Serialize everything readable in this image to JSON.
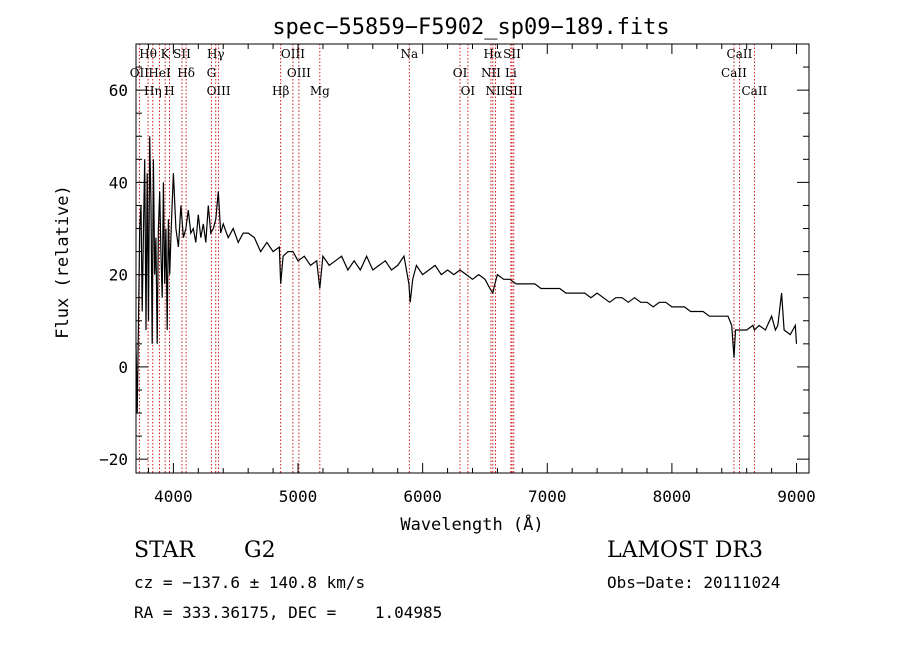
{
  "chart_data": {
    "type": "line",
    "title": "spec−55859−F5902_sp09−189.fits",
    "xlabel": "Wavelength (Å)",
    "ylabel": "Flux (relative)",
    "xlim": [
      3700,
      9100
    ],
    "ylim": [
      -23,
      70
    ],
    "xticks": [
      4000,
      5000,
      6000,
      7000,
      8000,
      9000
    ],
    "yticks": [
      -20,
      0,
      20,
      40,
      60
    ],
    "line_color": "#000000",
    "marker_color": "#cc0000",
    "series": [
      {
        "name": "spectrum",
        "x": [
          3700,
          3710,
          3720,
          3730,
          3740,
          3750,
          3760,
          3770,
          3780,
          3790,
          3800,
          3810,
          3820,
          3830,
          3840,
          3850,
          3860,
          3870,
          3880,
          3890,
          3900,
          3910,
          3920,
          3930,
          3940,
          3950,
          3960,
          3970,
          3980,
          3990,
          4000,
          4020,
          4040,
          4060,
          4080,
          4100,
          4120,
          4140,
          4160,
          4180,
          4200,
          4220,
          4240,
          4260,
          4280,
          4300,
          4320,
          4340,
          4360,
          4380,
          4400,
          4440,
          4480,
          4520,
          4560,
          4600,
          4650,
          4700,
          4750,
          4800,
          4850,
          4861,
          4880,
          4920,
          4960,
          5000,
          5050,
          5100,
          5150,
          5175,
          5200,
          5250,
          5300,
          5350,
          5400,
          5450,
          5500,
          5550,
          5600,
          5650,
          5700,
          5750,
          5800,
          5850,
          5890,
          5900,
          5920,
          5950,
          6000,
          6050,
          6100,
          6150,
          6200,
          6250,
          6300,
          6350,
          6400,
          6450,
          6500,
          6540,
          6563,
          6580,
          6600,
          6650,
          6700,
          6750,
          6800,
          6850,
          6900,
          6950,
          7000,
          7050,
          7100,
          7150,
          7200,
          7250,
          7300,
          7350,
          7400,
          7450,
          7500,
          7550,
          7600,
          7650,
          7700,
          7750,
          7800,
          7850,
          7900,
          7950,
          8000,
          8050,
          8100,
          8150,
          8200,
          8250,
          8300,
          8350,
          8400,
          8450,
          8480,
          8498,
          8510,
          8542,
          8560,
          8600,
          8650,
          8662,
          8700,
          8750,
          8800,
          8830,
          8850,
          8880,
          8900,
          8950,
          8990,
          9000
        ],
        "values": [
          5,
          -10,
          10,
          30,
          35,
          12,
          30,
          45,
          8,
          42,
          10,
          50,
          35,
          5,
          45,
          20,
          28,
          5,
          30,
          38,
          25,
          15,
          40,
          18,
          30,
          8,
          32,
          20,
          28,
          35,
          42,
          30,
          26,
          35,
          28,
          30,
          34,
          29,
          30,
          27,
          33,
          28,
          31,
          27,
          35,
          29,
          30,
          32,
          38,
          29,
          31,
          28,
          30,
          27,
          29,
          29,
          28,
          25,
          27,
          25,
          26,
          18,
          24,
          25,
          25,
          23,
          24,
          22,
          23,
          17,
          24,
          22,
          23,
          24,
          21,
          23,
          21,
          24,
          21,
          22,
          23,
          21,
          22,
          24,
          18,
          14,
          19,
          22,
          20,
          21,
          22,
          20,
          21,
          20,
          21,
          20,
          19,
          20,
          19,
          17,
          16,
          18,
          20,
          19,
          19,
          18,
          18,
          18,
          18,
          17,
          17,
          17,
          17,
          16,
          16,
          16,
          16,
          15,
          16,
          15,
          14,
          15,
          15,
          14,
          15,
          14,
          14,
          13,
          14,
          14,
          13,
          13,
          13,
          12,
          12,
          12,
          11,
          11,
          11,
          11,
          9,
          2,
          8,
          8,
          8,
          8,
          9,
          8,
          9,
          8,
          11,
          8,
          9,
          16,
          8,
          7,
          9,
          5
        ]
      }
    ],
    "line_markers": [
      {
        "label": "Hθ",
        "wavelength": 3797
      },
      {
        "label": "OII",
        "wavelength": 3727
      },
      {
        "label": "Hη",
        "wavelength": 3835
      },
      {
        "label": "K",
        "wavelength": 3934
      },
      {
        "label": "HeI",
        "wavelength": 3889
      },
      {
        "label": "H",
        "wavelength": 3969
      },
      {
        "label": "SII",
        "wavelength": 4069
      },
      {
        "label": "Hδ",
        "wavelength": 4102
      },
      {
        "label": "OIII",
        "wavelength": 4363
      },
      {
        "label": "Hγ",
        "wavelength": 4340
      },
      {
        "label": "G",
        "wavelength": 4305
      },
      {
        "label": "Hβ",
        "wavelength": 4861
      },
      {
        "label": "OIII",
        "wavelength": 4959
      },
      {
        "label": "OIII",
        "wavelength": 5007
      },
      {
        "label": "Mg",
        "wavelength": 5175
      },
      {
        "label": "Na",
        "wavelength": 5893
      },
      {
        "label": "OI",
        "wavelength": 6300
      },
      {
        "label": "OI",
        "wavelength": 6363
      },
      {
        "label": "Hα",
        "wavelength": 6563
      },
      {
        "label": "NII",
        "wavelength": 6548
      },
      {
        "label": "NII",
        "wavelength": 6584
      },
      {
        "label": "SII",
        "wavelength": 6717
      },
      {
        "label": "Li",
        "wavelength": 6708
      },
      {
        "label": "SII",
        "wavelength": 6731
      },
      {
        "label": "CaII",
        "wavelength": 8542
      },
      {
        "label": "CaII",
        "wavelength": 8498
      },
      {
        "label": "CaII",
        "wavelength": 8662
      }
    ]
  },
  "info": {
    "object_class": "STAR",
    "subclass": "G2",
    "survey": "LAMOST DR3",
    "redshift_line": "cz = −137.6 ± 140.8 km/s",
    "coordinates_line": "RA = 333.36175, DEC =    1.04985",
    "obs_date_line": "Obs−Date: 20111024"
  }
}
